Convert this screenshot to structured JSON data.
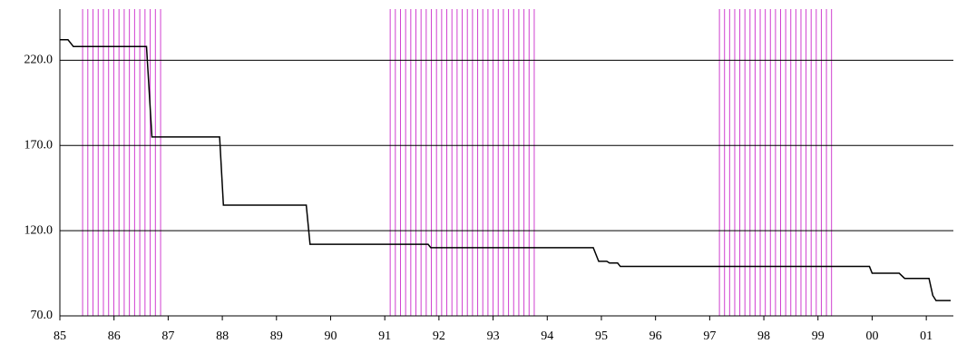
{
  "chart_data": {
    "type": "line",
    "x": [
      1985.0,
      1985.15,
      1985.25,
      1986.6,
      1986.7,
      1987.95,
      1988.02,
      1989.55,
      1989.62,
      1991.8,
      1991.85,
      1994.85,
      1994.95,
      1995.1,
      1995.15,
      1995.3,
      1995.35,
      1999.95,
      2000.0,
      2000.5,
      2000.6,
      2001.05,
      2001.12,
      2001.18,
      2001.45
    ],
    "series": [
      {
        "color": "#000000",
        "values": [
          232,
          232,
          228,
          228,
          175,
          175,
          135,
          135,
          112,
          112,
          110,
          110,
          102,
          102,
          101,
          101,
          99,
          99,
          95,
          95,
          92,
          92,
          82,
          79,
          79
        ]
      }
    ],
    "bands": [
      [
        1985.42,
        1986.86
      ],
      [
        1991.1,
        1993.76
      ],
      [
        1997.18,
        1999.25
      ]
    ],
    "band_color": "#d040d0",
    "xlim": [
      1985,
      2001.5
    ],
    "ylim": [
      70,
      250
    ],
    "xticks": [
      {
        "value": 1985,
        "label": "85"
      },
      {
        "value": 1986,
        "label": "86"
      },
      {
        "value": 1987,
        "label": "87"
      },
      {
        "value": 1988,
        "label": "88"
      },
      {
        "value": 1989,
        "label": "89"
      },
      {
        "value": 1990,
        "label": "90"
      },
      {
        "value": 1991,
        "label": "91"
      },
      {
        "value": 1992,
        "label": "92"
      },
      {
        "value": 1993,
        "label": "93"
      },
      {
        "value": 1994,
        "label": "94"
      },
      {
        "value": 1995,
        "label": "95"
      },
      {
        "value": 1996,
        "label": "96"
      },
      {
        "value": 1997,
        "label": "97"
      },
      {
        "value": 1998,
        "label": "98"
      },
      {
        "value": 1999,
        "label": "99"
      },
      {
        "value": 2000,
        "label": "00"
      },
      {
        "value": 2001,
        "label": "01"
      }
    ],
    "yticks": [
      {
        "value": 70,
        "label": "70.0"
      },
      {
        "value": 120,
        "label": "120.0"
      },
      {
        "value": 170,
        "label": "170.0"
      },
      {
        "value": 220,
        "label": "220.0"
      }
    ],
    "grid": true
  }
}
